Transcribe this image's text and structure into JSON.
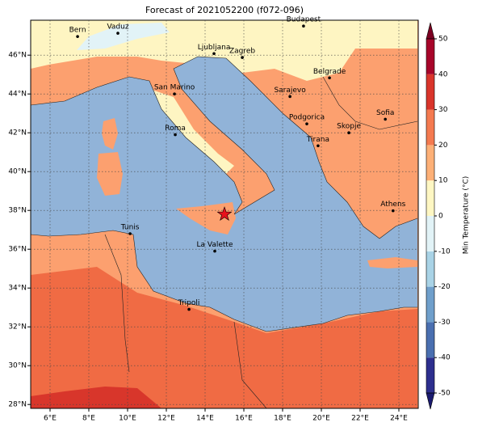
{
  "chart_data": {
    "type": "map",
    "title": "Forecast of 2021052200 (f072-096)",
    "xlim": [
      5,
      25
    ],
    "ylim": [
      27.8,
      47.8
    ],
    "xticks": [
      {
        "value": 6,
        "label": "6°E"
      },
      {
        "value": 8,
        "label": "8°E"
      },
      {
        "value": 10,
        "label": "10°E"
      },
      {
        "value": 12,
        "label": "12°E"
      },
      {
        "value": 14,
        "label": "14°E"
      },
      {
        "value": 16,
        "label": "16°E"
      },
      {
        "value": 18,
        "label": "18°E"
      },
      {
        "value": 20,
        "label": "20°E"
      },
      {
        "value": 22,
        "label": "22°E"
      },
      {
        "value": 24,
        "label": "24°E"
      }
    ],
    "yticks": [
      {
        "value": 28,
        "label": "28°N"
      },
      {
        "value": 30,
        "label": "30°N"
      },
      {
        "value": 32,
        "label": "32°N"
      },
      {
        "value": 34,
        "label": "34°N"
      },
      {
        "value": 36,
        "label": "36°N"
      },
      {
        "value": 38,
        "label": "38°N"
      },
      {
        "value": 40,
        "label": "40°N"
      },
      {
        "value": 42,
        "label": "42°N"
      },
      {
        "value": 44,
        "label": "44°N"
      },
      {
        "value": 46,
        "label": "46°N"
      }
    ],
    "grid": true,
    "cities": [
      {
        "name": "Bern",
        "lon": 7.42,
        "lat": 46.96
      },
      {
        "name": "Vaduz",
        "lon": 9.5,
        "lat": 47.13
      },
      {
        "name": "Budapest",
        "lon": 19.08,
        "lat": 47.5
      },
      {
        "name": "Ljubljana",
        "lon": 14.46,
        "lat": 46.08
      },
      {
        "name": "Zagreb",
        "lon": 15.92,
        "lat": 45.88
      },
      {
        "name": "Belgrade",
        "lon": 20.42,
        "lat": 44.83
      },
      {
        "name": "Sarajevo",
        "lon": 18.38,
        "lat": 43.87
      },
      {
        "name": "San Marino",
        "lon": 12.42,
        "lat": 44.0
      },
      {
        "name": "Podgorica",
        "lon": 19.25,
        "lat": 42.46
      },
      {
        "name": "Skopje",
        "lon": 21.42,
        "lat": 42.0
      },
      {
        "name": "Sofia",
        "lon": 23.3,
        "lat": 42.7
      },
      {
        "name": "Roma",
        "lon": 12.46,
        "lat": 41.9
      },
      {
        "name": "Tirana",
        "lon": 19.83,
        "lat": 41.33
      },
      {
        "name": "Athens",
        "lon": 23.7,
        "lat": 37.98
      },
      {
        "name": "Tunis",
        "lon": 10.13,
        "lat": 36.8
      },
      {
        "name": "La Valette",
        "lon": 14.5,
        "lat": 35.9
      },
      {
        "name": "Tripoli",
        "lon": 13.17,
        "lat": 32.9
      }
    ],
    "marker": {
      "lon": 15.0,
      "lat": 37.8,
      "color": "#e8111b"
    },
    "colorbar": {
      "label": "Min Temperature (°C)",
      "ticks": [
        -50,
        -40,
        -30,
        -20,
        -10,
        0,
        10,
        20,
        30,
        40,
        50
      ],
      "colors": [
        "#2d2f8e",
        "#4a6fb0",
        "#6f9fcb",
        "#a9d3e6",
        "#e2f3f7",
        "#fef7c3",
        "#fdb077",
        "#f47a50",
        "#d9352b",
        "#a7052a"
      ],
      "under": "#1b1b70",
      "over": "#7c0022"
    }
  }
}
